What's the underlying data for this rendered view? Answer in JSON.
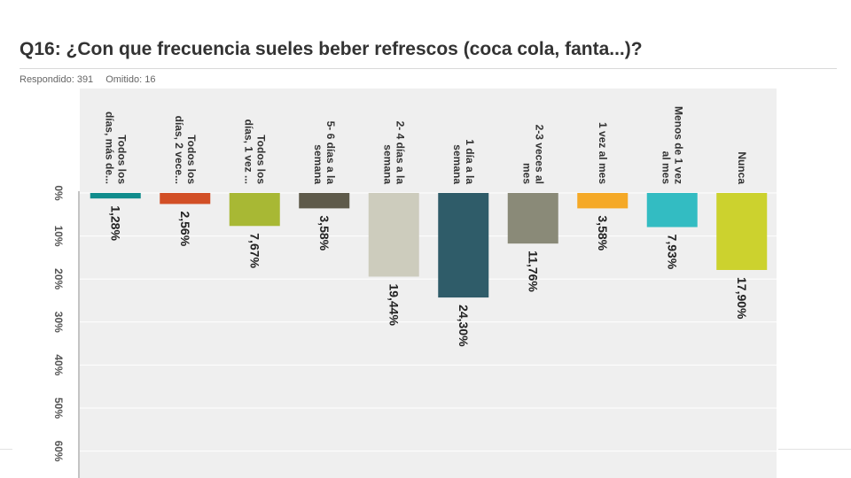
{
  "header": {
    "title": "Q16: ¿Con que frecuencia sueles beber refrescos (coca cola, fanta...)?",
    "answered_label": "Respondido: 391",
    "skipped_label": "Omitido: 16"
  },
  "chart_data": {
    "type": "bar",
    "orientation": "vertical-downward",
    "categories": [
      [
        "Todos los",
        "días, más de..."
      ],
      [
        "Todos los",
        "días, 2 vece..."
      ],
      [
        "Todos los",
        "días, 1 vez ..."
      ],
      [
        "5- 6 días a la",
        "semana"
      ],
      [
        "2- 4 días a la",
        "semana"
      ],
      [
        "1 día a la",
        "semana"
      ],
      [
        "2-3 veces al",
        "mes"
      ],
      [
        "1 vez al mes"
      ],
      [
        "Menos de 1 vez",
        "al mes"
      ],
      [
        "Nunca"
      ]
    ],
    "values": [
      1.28,
      2.56,
      7.67,
      3.58,
      19.44,
      24.3,
      11.76,
      3.58,
      7.93,
      17.9
    ],
    "value_labels": [
      "1,28%",
      "2,56%",
      "7,67%",
      "3,58%",
      "19,44%",
      "24,30%",
      "11,76%",
      "3,58%",
      "7,93%",
      "17,90%"
    ],
    "colors": [
      "#0f8c8c",
      "#d24f26",
      "#a8b834",
      "#5e5a4a",
      "#cdccbd",
      "#2f5c69",
      "#8a8a78",
      "#f5a927",
      "#33bcc2",
      "#ccd22e"
    ],
    "ticks": [
      "0%",
      "10%",
      "20%",
      "30%",
      "40%",
      "50%",
      "60%"
    ],
    "tick_values": [
      0,
      10,
      20,
      30,
      40,
      50,
      60
    ],
    "ylim": [
      0,
      60
    ],
    "grid": true,
    "plot_background": "#efefef",
    "grid_color": "#ffffff",
    "label_rotation": "90deg-clockwise"
  }
}
